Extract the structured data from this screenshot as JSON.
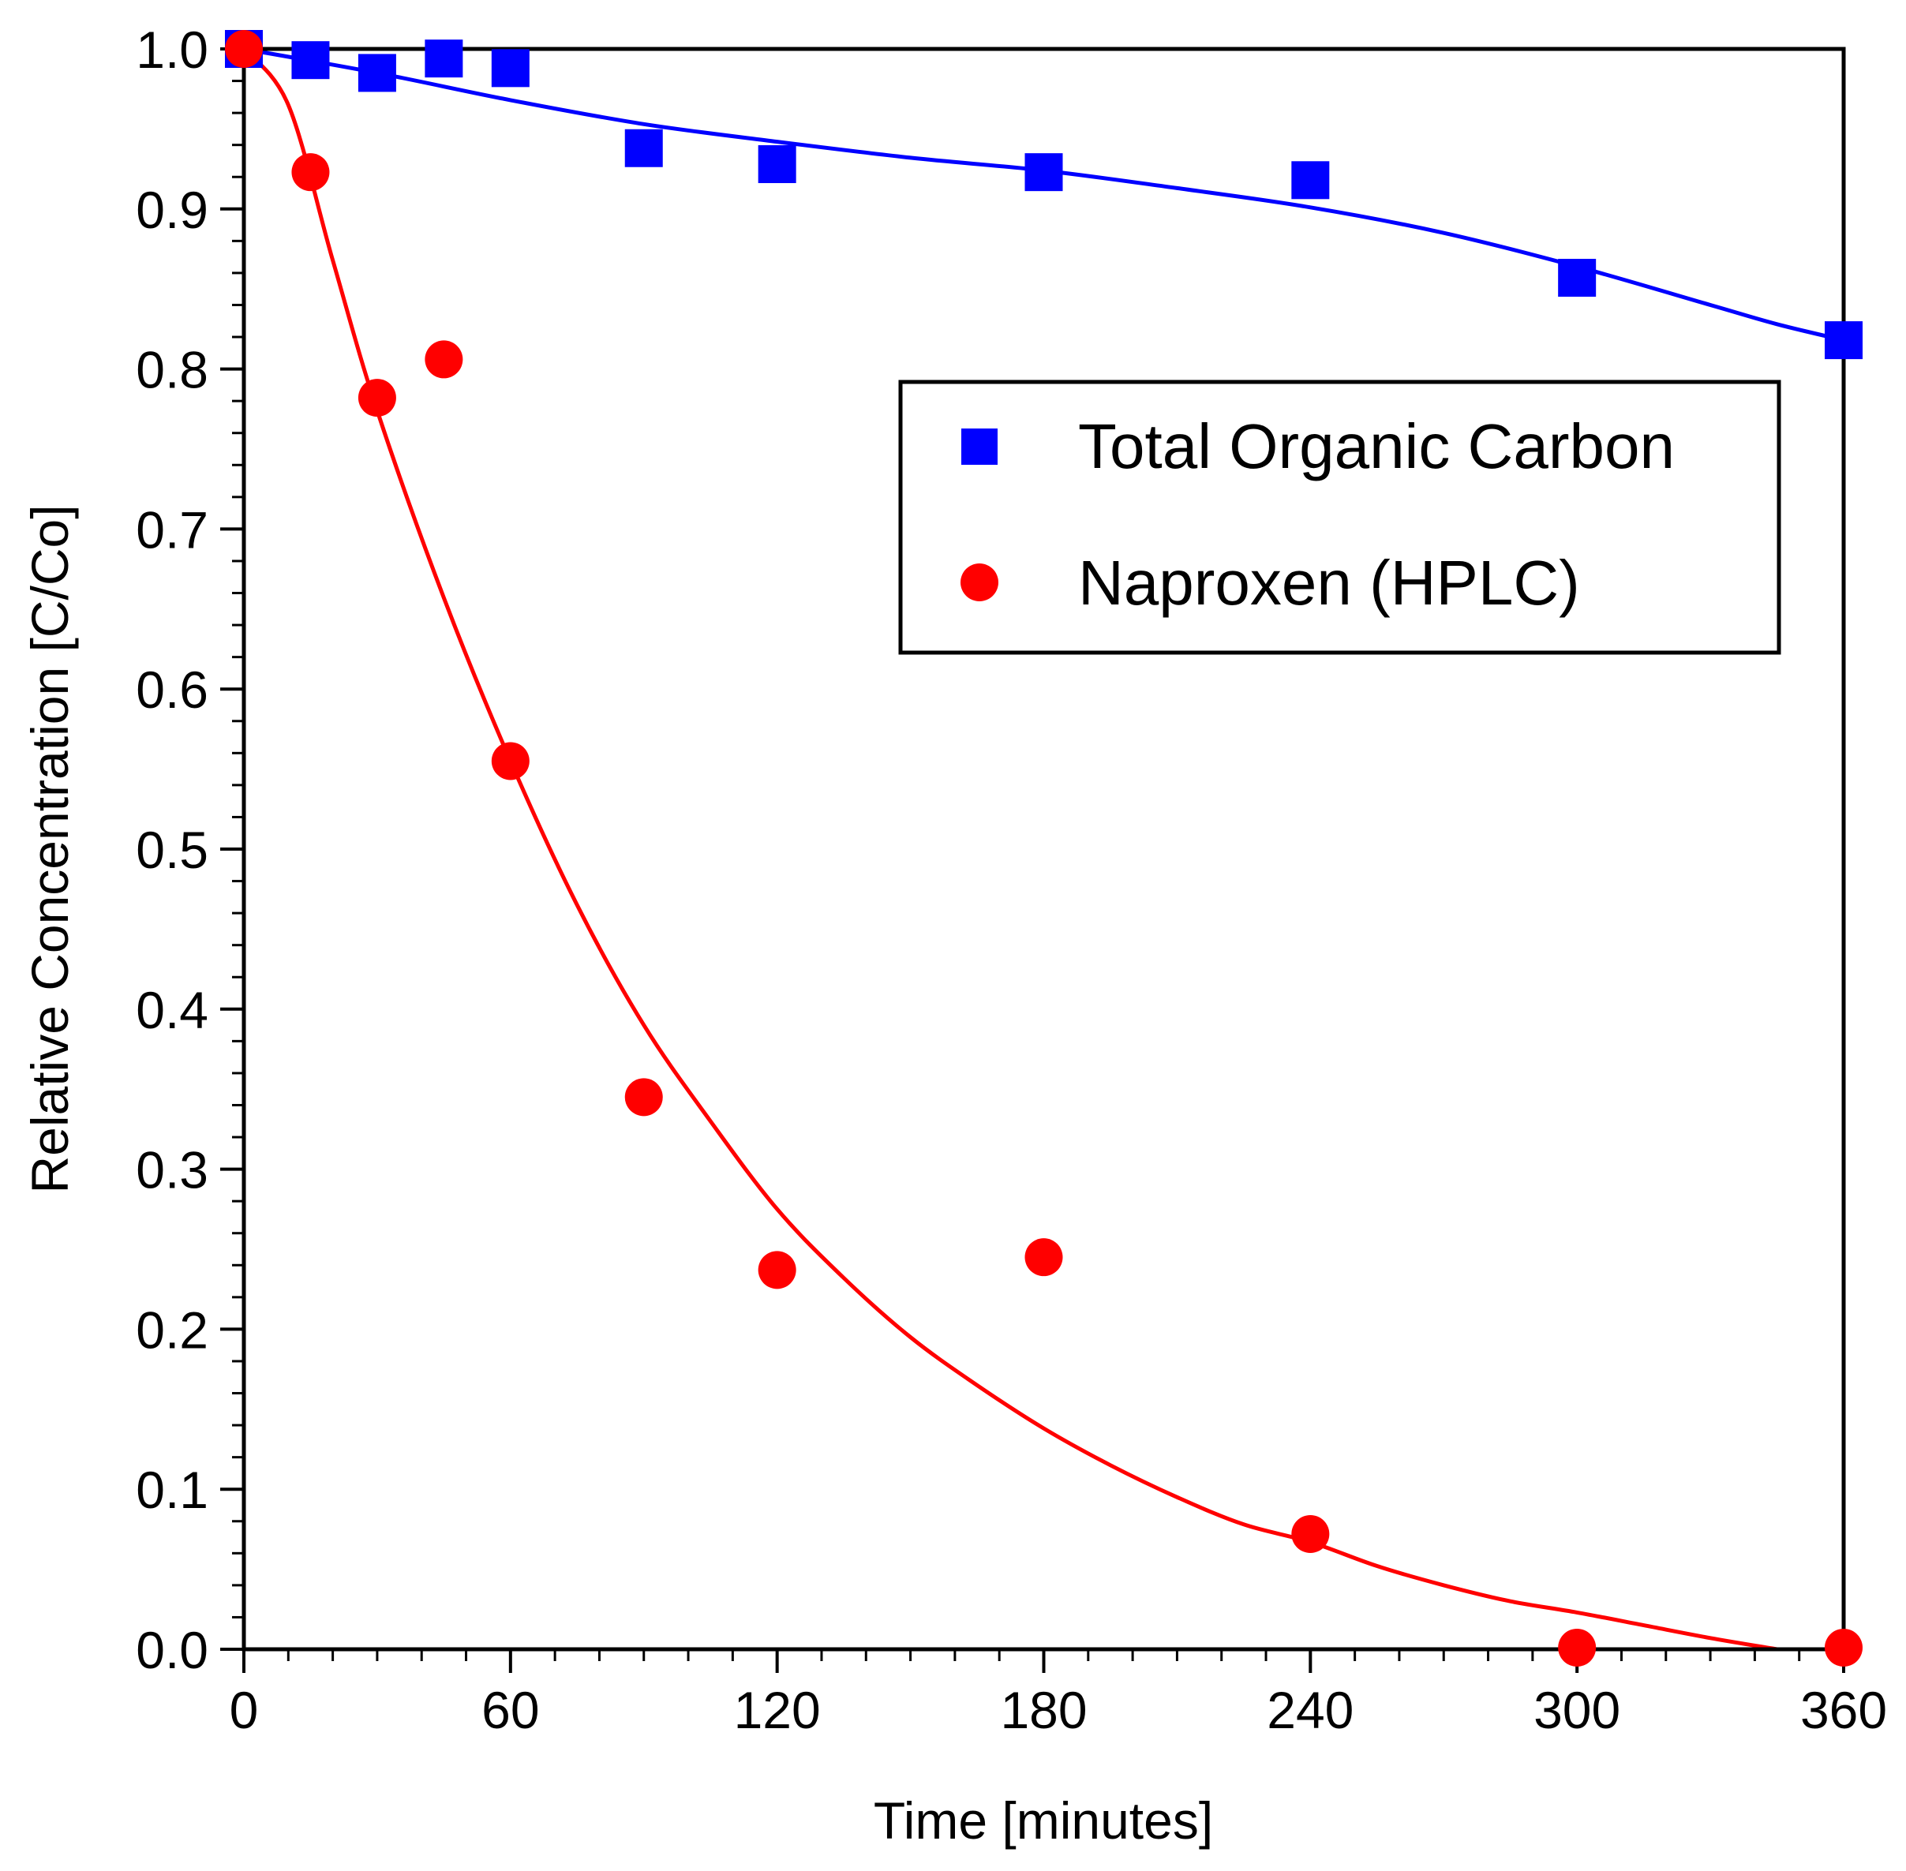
{
  "chart_data": {
    "type": "scatter",
    "title": "",
    "xlabel": "Time [minutes]",
    "ylabel": "Relative Concentration [C/Co]",
    "xlim": [
      0,
      360
    ],
    "ylim": [
      0,
      1.0
    ],
    "x_ticks": [
      0,
      60,
      120,
      180,
      240,
      300,
      360
    ],
    "x_tick_labels": [
      "0",
      "60",
      "120",
      "180",
      "240",
      "300",
      "360"
    ],
    "y_ticks": [
      0,
      0.1,
      0.2,
      0.3,
      0.4,
      0.5,
      0.6,
      0.7,
      0.8,
      0.9,
      1.0
    ],
    "y_tick_labels": [
      "0.0",
      "0.1",
      "0.2",
      "0.3",
      "0.4",
      "0.5",
      "0.6",
      "0.7",
      "0.8",
      "0.9",
      "1.0"
    ],
    "x_minor_step": 10,
    "y_minor_step": 0.02,
    "grid": false,
    "legend_position": "upper-right, below the top series",
    "series": [
      {
        "name": "Total Organic Carbon",
        "marker": "square",
        "color": "#0000ff",
        "x": [
          0,
          15,
          30,
          45,
          60,
          90,
          120,
          180,
          240,
          300,
          360
        ],
        "y": [
          1.0,
          0.993,
          0.985,
          0.994,
          0.988,
          0.938,
          0.928,
          0.923,
          0.918,
          0.857,
          0.818
        ],
        "fit_curve": {
          "x": [
            0,
            30,
            60,
            90,
            120,
            150,
            180,
            210,
            240,
            270,
            300,
            330,
            345,
            360
          ],
          "y": [
            1.0,
            0.985,
            0.968,
            0.953,
            0.942,
            0.932,
            0.924,
            0.913,
            0.901,
            0.885,
            0.864,
            0.84,
            0.828,
            0.818
          ]
        }
      },
      {
        "name": "Naproxen (HPLC)",
        "marker": "circle",
        "color": "#ff0000",
        "x": [
          0,
          15,
          30,
          45,
          60,
          90,
          120,
          180,
          240,
          300,
          360
        ],
        "y": [
          1.0,
          0.923,
          0.782,
          0.806,
          0.555,
          0.345,
          0.237,
          0.245,
          0.072,
          0.001,
          0.001
        ],
        "fit_curve": {
          "x": [
            0,
            10,
            20,
            30,
            45,
            60,
            75,
            90,
            105,
            120,
            135,
            150,
            165,
            180,
            195,
            210,
            225,
            240,
            255,
            270,
            285,
            300,
            315,
            330,
            345
          ],
          "y": [
            1.0,
            0.965,
            0.868,
            0.774,
            0.657,
            0.555,
            0.465,
            0.39,
            0.33,
            0.275,
            0.232,
            0.195,
            0.165,
            0.138,
            0.115,
            0.095,
            0.078,
            0.067,
            0.052,
            0.04,
            0.03,
            0.023,
            0.015,
            0.007,
            0.0
          ]
        }
      }
    ]
  }
}
